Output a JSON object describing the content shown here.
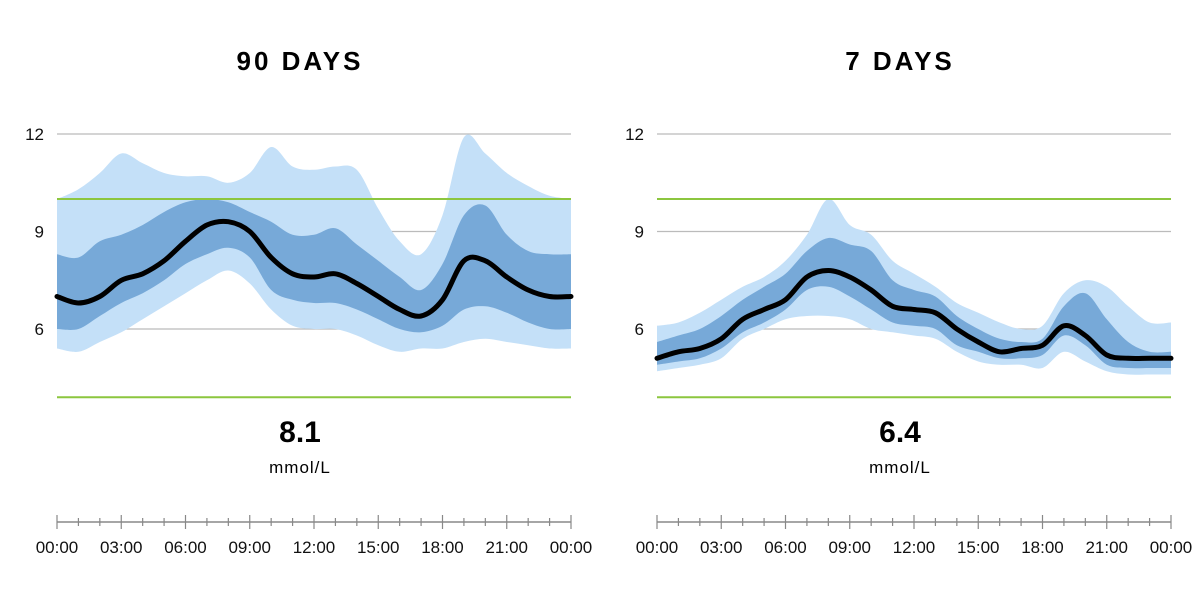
{
  "colors": {
    "outer_band": "#c4e0f8",
    "inner_band": "#77a9d8",
    "median": "#000000",
    "grid": "#bbbbbb",
    "target": "#8cc63f",
    "axis": "#888888"
  },
  "chart_data": [
    {
      "type": "area",
      "title": "90 DAYS",
      "value": "8.1",
      "unit": "mmol/L",
      "xticks": [
        "00:00",
        "03:00",
        "06:00",
        "09:00",
        "12:00",
        "15:00",
        "18:00",
        "21:00",
        "00:00"
      ],
      "yticks": [
        12,
        9,
        6
      ],
      "ylim": [
        3.2,
        12.7
      ],
      "target_range": [
        3.9,
        10.0
      ],
      "x": [
        0,
        1,
        2,
        3,
        4,
        5,
        6,
        7,
        8,
        9,
        10,
        11,
        12,
        13,
        14,
        15,
        16,
        17,
        18,
        19,
        20,
        21,
        22,
        23,
        24
      ],
      "median": [
        7.0,
        6.8,
        7.0,
        7.5,
        7.7,
        8.1,
        8.7,
        9.2,
        9.3,
        9.0,
        8.2,
        7.7,
        7.6,
        7.7,
        7.4,
        7.0,
        6.6,
        6.4,
        6.9,
        8.1,
        8.1,
        7.6,
        7.2,
        7.0,
        7.0
      ],
      "q25": [
        6.0,
        6.0,
        6.4,
        6.8,
        7.1,
        7.5,
        8.0,
        8.3,
        8.5,
        8.2,
        7.2,
        6.9,
        6.8,
        6.8,
        6.6,
        6.3,
        6.0,
        5.9,
        6.1,
        6.6,
        6.7,
        6.5,
        6.2,
        6.0,
        6.0
      ],
      "q75": [
        8.3,
        8.2,
        8.7,
        8.9,
        9.2,
        9.6,
        9.9,
        10.0,
        9.9,
        9.6,
        9.3,
        8.9,
        8.9,
        9.1,
        8.6,
        8.1,
        7.6,
        7.2,
        8.0,
        9.5,
        9.8,
        8.9,
        8.4,
        8.3,
        8.3
      ],
      "p10": [
        5.4,
        5.3,
        5.6,
        5.9,
        6.3,
        6.7,
        7.1,
        7.5,
        7.8,
        7.4,
        6.6,
        6.1,
        6.0,
        6.0,
        5.8,
        5.5,
        5.3,
        5.4,
        5.4,
        5.6,
        5.7,
        5.6,
        5.5,
        5.4,
        5.4
      ],
      "p90": [
        10.0,
        10.3,
        10.8,
        11.4,
        11.1,
        10.8,
        10.7,
        10.7,
        10.5,
        10.8,
        11.6,
        11.0,
        10.9,
        11.0,
        10.9,
        9.7,
        8.7,
        8.3,
        9.5,
        11.9,
        11.4,
        10.8,
        10.4,
        10.1,
        10.0
      ]
    },
    {
      "type": "area",
      "title": "7 DAYS",
      "value": "6.4",
      "unit": "mmol/L",
      "xticks": [
        "00:00",
        "03:00",
        "06:00",
        "09:00",
        "12:00",
        "15:00",
        "18:00",
        "21:00",
        "00:00"
      ],
      "yticks": [
        12,
        9,
        6
      ],
      "ylim": [
        3.2,
        12.7
      ],
      "target_range": [
        3.9,
        10.0
      ],
      "x": [
        0,
        1,
        2,
        3,
        4,
        5,
        6,
        7,
        8,
        9,
        10,
        11,
        12,
        13,
        14,
        15,
        16,
        17,
        18,
        19,
        20,
        21,
        22,
        23,
        24
      ],
      "median": [
        5.1,
        5.3,
        5.4,
        5.7,
        6.3,
        6.6,
        6.9,
        7.6,
        7.8,
        7.6,
        7.2,
        6.7,
        6.6,
        6.5,
        6.0,
        5.6,
        5.3,
        5.4,
        5.5,
        6.1,
        5.8,
        5.2,
        5.1,
        5.1,
        5.1
      ],
      "q25": [
        4.9,
        5.0,
        5.1,
        5.4,
        5.9,
        6.2,
        6.6,
        7.2,
        7.3,
        7.0,
        6.6,
        6.2,
        6.1,
        6.0,
        5.5,
        5.3,
        5.1,
        5.1,
        5.2,
        5.8,
        5.5,
        4.9,
        4.8,
        4.8,
        4.8
      ],
      "q75": [
        5.6,
        5.8,
        6.0,
        6.4,
        6.9,
        7.3,
        7.7,
        8.4,
        8.8,
        8.6,
        8.4,
        7.5,
        7.2,
        7.0,
        6.4,
        6.0,
        5.7,
        5.6,
        5.7,
        6.7,
        7.1,
        6.3,
        5.6,
        5.3,
        5.3
      ],
      "p10": [
        4.7,
        4.8,
        4.9,
        5.1,
        5.7,
        6.0,
        6.3,
        6.4,
        6.4,
        6.3,
        6.0,
        5.9,
        5.8,
        5.7,
        5.3,
        5.0,
        4.9,
        4.9,
        4.8,
        5.3,
        5.0,
        4.7,
        4.6,
        4.6,
        4.6
      ],
      "p90": [
        6.1,
        6.2,
        6.5,
        6.9,
        7.3,
        7.6,
        8.1,
        8.9,
        10.0,
        9.2,
        8.9,
        8.1,
        7.7,
        7.3,
        6.8,
        6.5,
        6.2,
        6.0,
        6.1,
        7.1,
        7.5,
        7.3,
        6.7,
        6.2,
        6.2
      ]
    }
  ]
}
